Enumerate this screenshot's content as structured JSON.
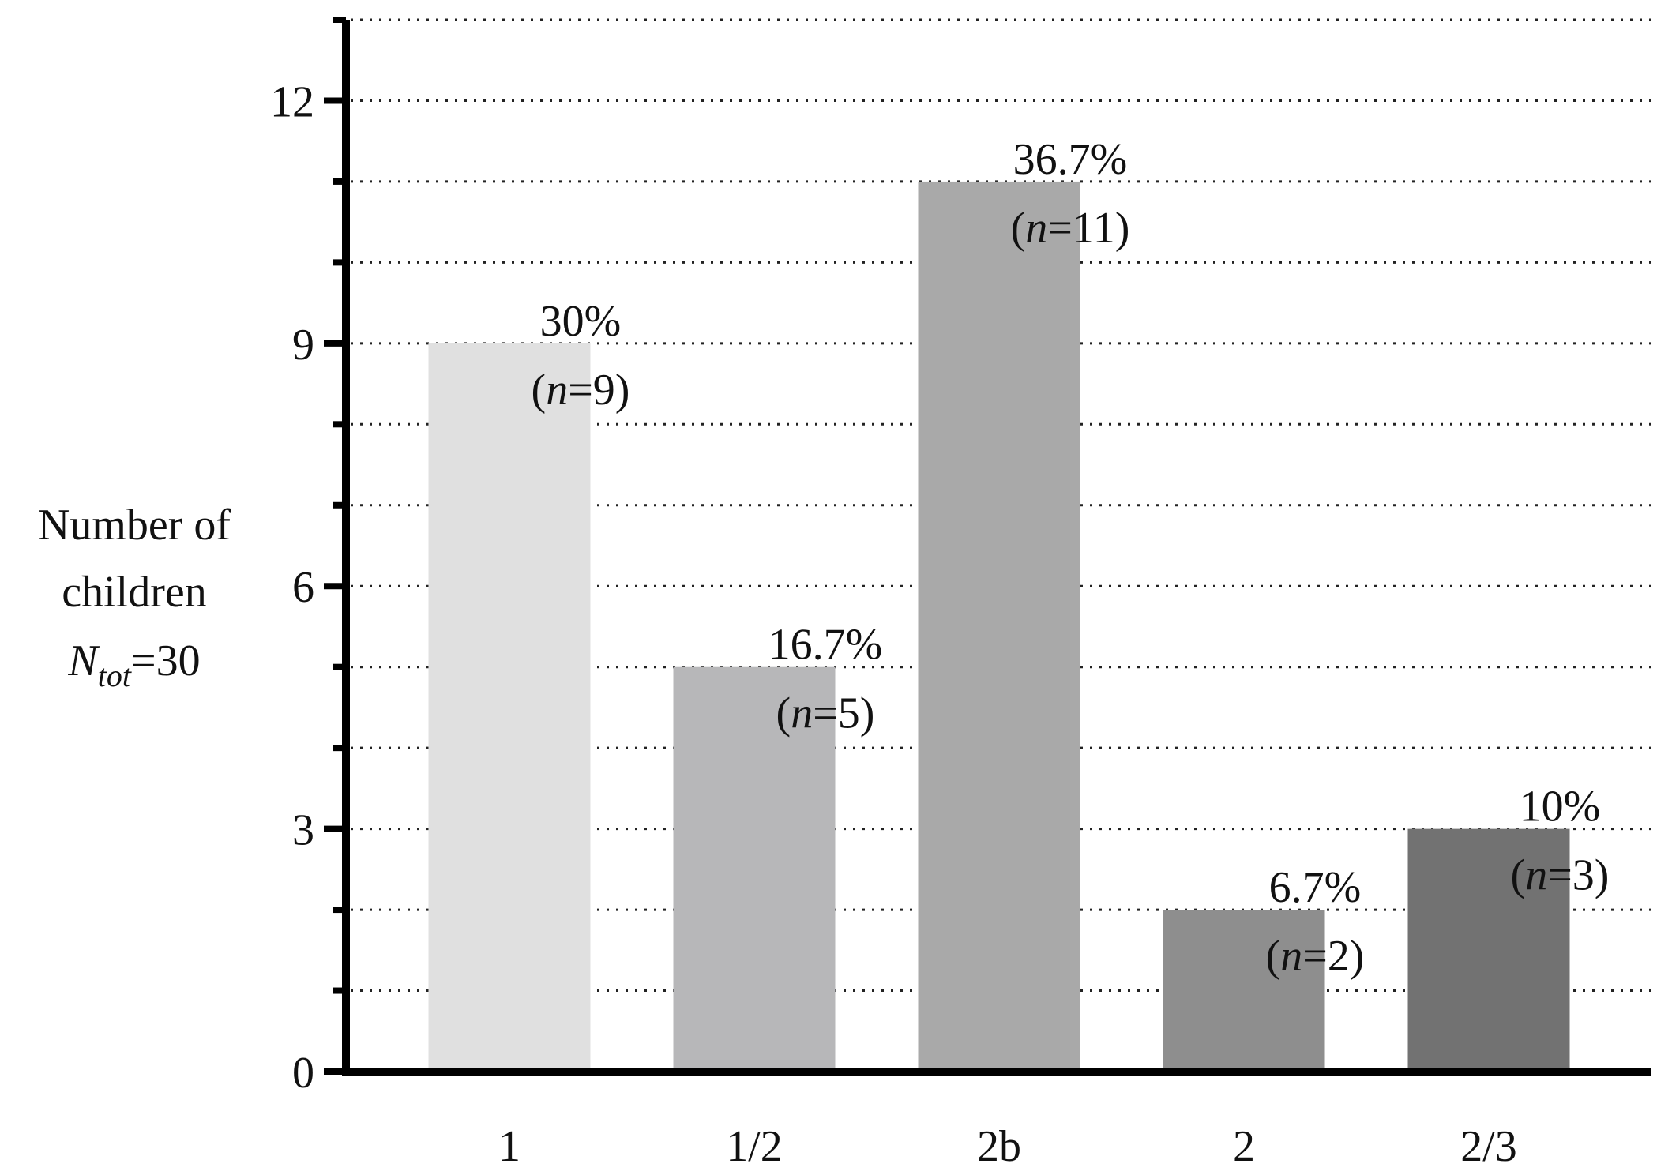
{
  "chart_data": {
    "type": "bar",
    "categories": [
      "1",
      "1/2",
      "2b",
      "2",
      "2/3"
    ],
    "values": [
      9,
      5,
      11,
      2,
      3
    ],
    "percent_labels": [
      "30%",
      "16.7%",
      "36.7%",
      "6.7%",
      "10%"
    ],
    "n_values": [
      "9",
      "5",
      "11",
      "2",
      "3"
    ],
    "bar_colors": [
      "#e0e0e0",
      "#b7b7b9",
      "#a9a9a9",
      "#8e8e8e",
      "#727272"
    ],
    "ylabel_lines": [
      "Number of",
      "children"
    ],
    "ylabel_ntot": {
      "symbol": "N",
      "subscript": "tot",
      "suffix": "=30"
    },
    "n_symbol": "n",
    "ylim": [
      0,
      13
    ],
    "yticks": [
      0,
      3,
      6,
      9,
      12
    ],
    "grid": "horizontal-dotted",
    "title": "",
    "xlabel": ""
  }
}
